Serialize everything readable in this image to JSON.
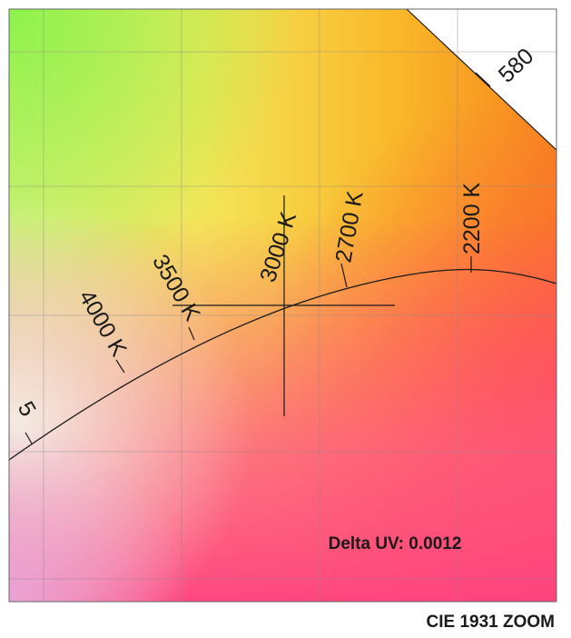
{
  "wavelength_label": "580",
  "cct_labels": [
    "4000 K",
    "3500 K",
    "3000 K",
    "2700 K",
    "2200 K"
  ],
  "delta_uv_text": "Delta UV: 0.0012",
  "caption": "CIE 1931 ZOOM",
  "colors": {
    "locus_line": "#222222",
    "grid": "#888888",
    "frame": "#666666"
  }
}
